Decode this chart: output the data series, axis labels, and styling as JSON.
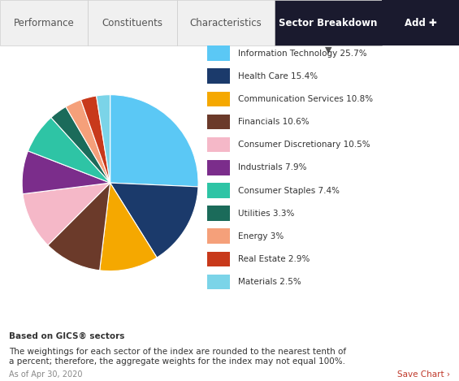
{
  "sectors": [
    "Information Technology",
    "Health Care",
    "Communication Services",
    "Financials",
    "Consumer Discretionary",
    "Industrials",
    "Consumer Staples",
    "Utilities",
    "Energy",
    "Real Estate",
    "Materials"
  ],
  "values": [
    25.7,
    15.4,
    10.8,
    10.6,
    10.5,
    7.9,
    7.4,
    3.3,
    3.0,
    2.9,
    2.5
  ],
  "labels": [
    "Information Technology 25.7%",
    "Health Care 15.4%",
    "Communication Services 10.8%",
    "Financials 10.6%",
    "Consumer Discretionary 10.5%",
    "Industrials 7.9%",
    "Consumer Staples 7.4%",
    "Utilities 3.3%",
    "Energy 3%",
    "Real Estate 2.9%",
    "Materials 2.5%"
  ],
  "colors": [
    "#5BC8F5",
    "#1B3A6B",
    "#F5A800",
    "#6B3A2A",
    "#F5B8C8",
    "#7B2D8B",
    "#2EC4A5",
    "#1B6B5A",
    "#F5A07A",
    "#C8391B",
    "#7BD4E8"
  ],
  "tab_labels": [
    "Performance",
    "Constituents",
    "Characteristics",
    "Sector Breakdown"
  ],
  "active_tab": "Sector Breakdown",
  "footnote_bold": "Based on GICS® sectors",
  "footnote_text": "The weightings for each sector of the index are rounded to the nearest tenth of\na percent; therefore, the aggregate weights for the index may not equal 100%.",
  "date_text": "As of Apr 30, 2020",
  "save_text": "Save Chart ›",
  "bg_color": "#ffffff",
  "tab_bg": "#f0f0f0",
  "active_tab_bg": "#1a1a2e",
  "active_tab_color": "#ffffff",
  "inactive_tab_color": "#555555",
  "footnote_bold_color": "#333333",
  "footnote_text_color": "#333333",
  "date_color": "#888888",
  "save_color": "#c0392b"
}
